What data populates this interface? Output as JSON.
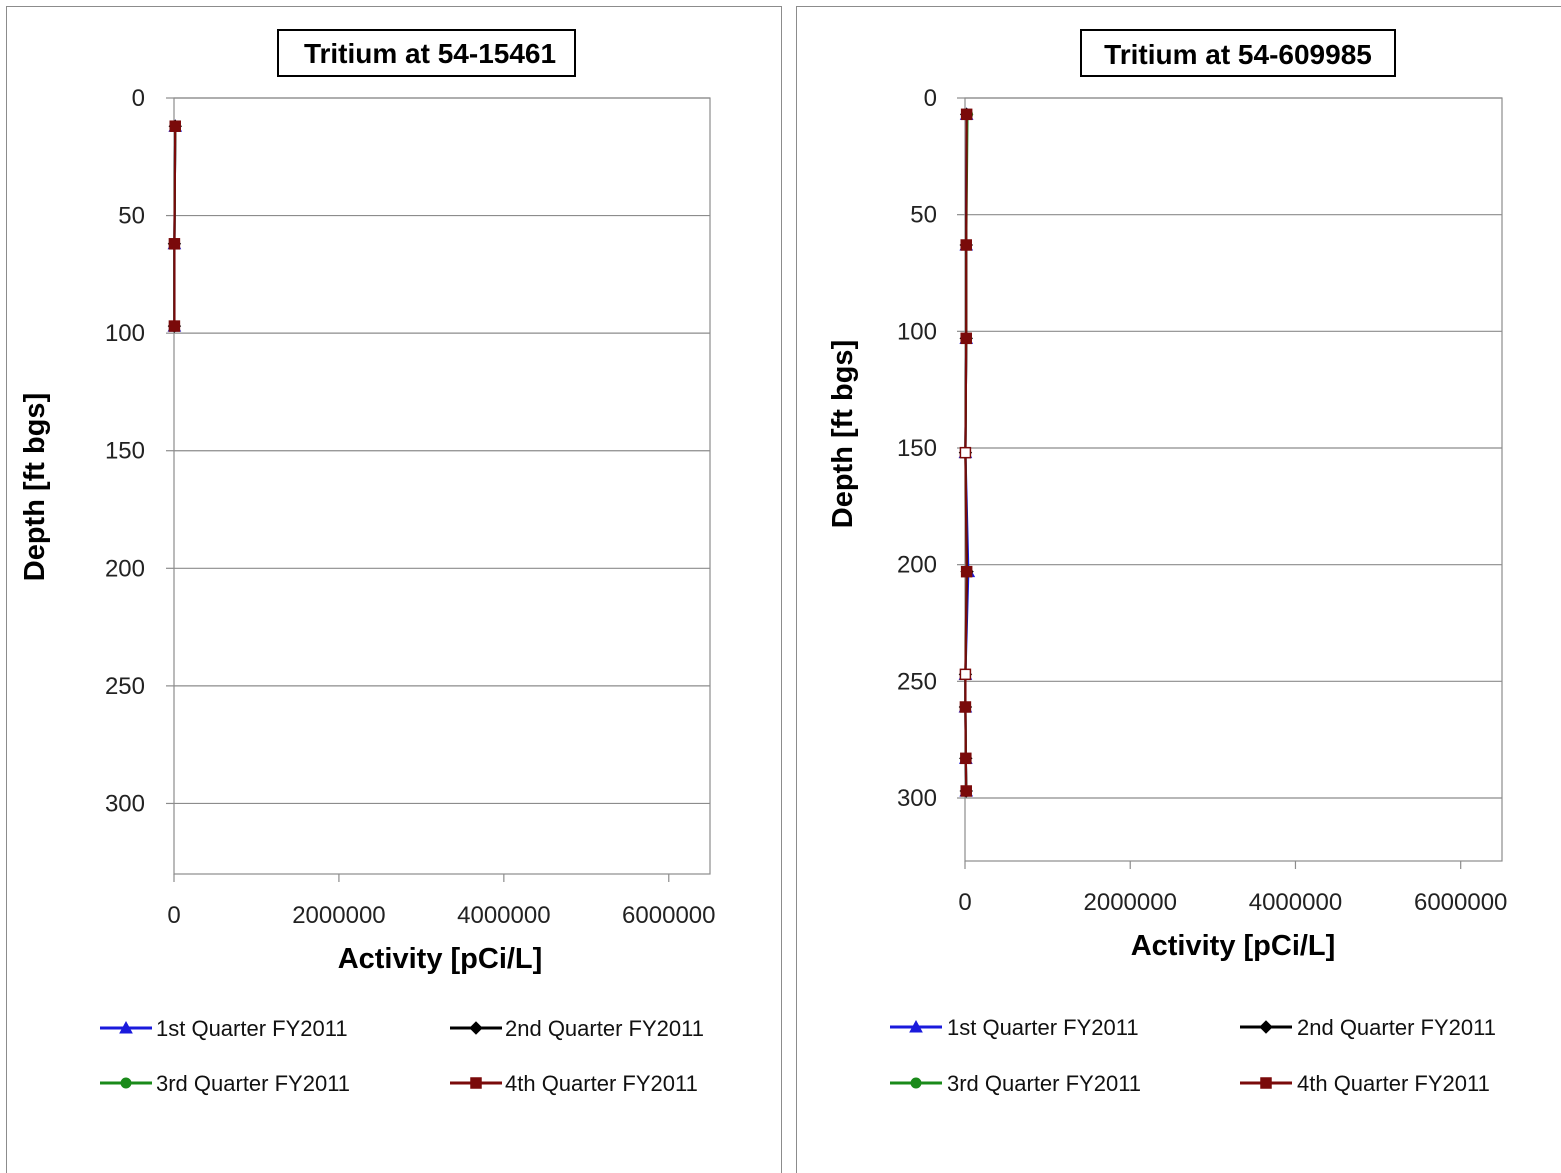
{
  "colors": {
    "q1": "#1a1adc",
    "q2": "#000000",
    "q3": "#1a8a1a",
    "q4": "#7a0a0a",
    "grid": "#8c8c8c"
  },
  "legend_markers": {
    "q1": "triangle",
    "q2": "diamond",
    "q3": "circle",
    "q4": "square"
  },
  "chart_data": [
    {
      "type": "line",
      "title": "Tritium at 54-15461",
      "xlabel": "Activity  [pCi/L]",
      "ylabel": "Depth [ft bgs]",
      "xlim": [
        0,
        6500000
      ],
      "ylim": [
        0,
        330
      ],
      "y_inverted": true,
      "grid": "horizontal",
      "legend_position": "bottom",
      "x_ticks": [
        "0",
        "2000000",
        "4000000",
        "6000000"
      ],
      "y_ticks": [
        "0",
        "50",
        "100",
        "150",
        "200",
        "250",
        "300"
      ],
      "series": [
        {
          "name": "1st Quarter FY2011",
          "points": [
            [
              15000,
              12
            ],
            [
              5000,
              62
            ],
            [
              5000,
              97
            ]
          ]
        },
        {
          "name": "2nd Quarter FY2011",
          "points": [
            [
              15000,
              12
            ],
            [
              5000,
              62
            ],
            [
              5000,
              97
            ]
          ]
        },
        {
          "name": "3rd Quarter FY2011",
          "points": [
            [
              15000,
              12
            ],
            [
              5000,
              62
            ],
            [
              5000,
              97
            ]
          ]
        },
        {
          "name": "4th Quarter FY2011",
          "points": [
            [
              15000,
              12
            ],
            [
              5000,
              62
            ],
            [
              5000,
              97
            ]
          ]
        }
      ]
    },
    {
      "type": "line",
      "title": "Tritium at 54-609985",
      "xlabel": "Activity  [pCi/L]",
      "ylabel": "Depth [ft bgs]",
      "xlim": [
        0,
        6500000
      ],
      "ylim": [
        0,
        327
      ],
      "y_inverted": true,
      "grid": "horizontal",
      "legend_position": "bottom",
      "x_ticks": [
        "0",
        "2000000",
        "4000000",
        "6000000"
      ],
      "y_ticks": [
        "0",
        "50",
        "100",
        "150",
        "200",
        "250",
        "300"
      ],
      "series": [
        {
          "name": "1st Quarter FY2011",
          "points": [
            [
              20000,
              7
            ],
            [
              15000,
              63
            ],
            [
              15000,
              103
            ],
            [
              5000,
              152
            ],
            [
              40000,
              203
            ],
            [
              5000,
              247
            ],
            [
              5000,
              261
            ],
            [
              10000,
              283
            ],
            [
              15000,
              297
            ]
          ]
        },
        {
          "name": "2nd Quarter FY2011",
          "points": [
            [
              20000,
              7
            ],
            [
              15000,
              63
            ],
            [
              15000,
              103
            ],
            [
              5000,
              152
            ],
            [
              25000,
              203
            ],
            [
              5000,
              247
            ],
            [
              5000,
              261
            ],
            [
              10000,
              283
            ],
            [
              15000,
              297
            ]
          ]
        },
        {
          "name": "3rd Quarter FY2011",
          "points": [
            [
              30000,
              7
            ],
            [
              15000,
              63
            ],
            [
              15000,
              103
            ],
            [
              5000,
              152
            ],
            [
              20000,
              203
            ],
            [
              5000,
              247
            ],
            [
              5000,
              261
            ],
            [
              10000,
              283
            ],
            [
              15000,
              297
            ]
          ]
        },
        {
          "name": "4th Quarter FY2011",
          "points": [
            [
              20000,
              7
            ],
            [
              15000,
              63
            ],
            [
              15000,
              103
            ],
            [
              5000,
              152
            ],
            [
              20000,
              203
            ],
            [
              5000,
              247
            ],
            [
              5000,
              261
            ],
            [
              10000,
              283
            ],
            [
              15000,
              297
            ]
          ],
          "hollow_at_depths": [
            152,
            247
          ]
        }
      ]
    }
  ]
}
